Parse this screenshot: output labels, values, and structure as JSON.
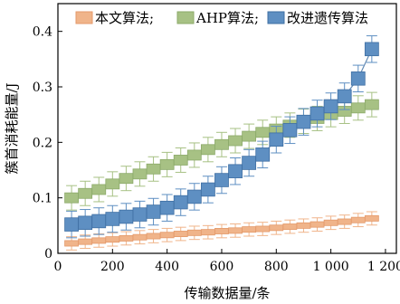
{
  "chart_data": {
    "type": "line",
    "xlabel": "传输数据量/条",
    "ylabel": "簇首消耗能量/J",
    "xlim": [
      0,
      1240
    ],
    "ylim": [
      0,
      0.45
    ],
    "xticks": [
      0,
      200,
      400,
      600,
      800,
      1000,
      1200
    ],
    "xtick_labels": [
      "0",
      "200",
      "400",
      "600",
      "800",
      "1 000",
      "1 200"
    ],
    "yticks": [
      0,
      0.1,
      0.2,
      0.3,
      0.4
    ],
    "ytick_labels": [
      "0",
      "0.1",
      "0.2",
      "0.3",
      "0.4"
    ],
    "grid": false,
    "legend_position": "top",
    "x": [
      50,
      100,
      150,
      200,
      250,
      300,
      350,
      400,
      450,
      500,
      550,
      600,
      650,
      700,
      750,
      800,
      850,
      900,
      950,
      1000,
      1050,
      1100,
      1150
    ],
    "series": [
      {
        "name": "本文算法;",
        "color": "#f0b48a",
        "edge_color": "#e49a6b",
        "values": [
          0.018,
          0.021,
          0.023,
          0.025,
          0.027,
          0.029,
          0.031,
          0.033,
          0.035,
          0.037,
          0.038,
          0.04,
          0.041,
          0.043,
          0.044,
          0.046,
          0.048,
          0.05,
          0.052,
          0.055,
          0.057,
          0.06,
          0.063
        ],
        "box_halfheight": 0.005,
        "error": 0.012
      },
      {
        "name": "AHP算法;",
        "color": "#a7c184",
        "edge_color": "#8caa6a",
        "values": [
          0.1,
          0.108,
          0.115,
          0.125,
          0.135,
          0.143,
          0.152,
          0.16,
          0.168,
          0.177,
          0.187,
          0.196,
          0.203,
          0.211,
          0.218,
          0.224,
          0.231,
          0.238,
          0.243,
          0.25,
          0.256,
          0.262,
          0.268
        ],
        "box_halfheight": 0.009,
        "error": 0.022
      },
      {
        "name": "改进遗传算法",
        "color": "#5e8fc2",
        "edge_color": "#3f6fa3",
        "values": [
          0.052,
          0.055,
          0.058,
          0.062,
          0.066,
          0.07,
          0.075,
          0.082,
          0.092,
          0.102,
          0.115,
          0.132,
          0.148,
          0.163,
          0.178,
          0.205,
          0.222,
          0.237,
          0.252,
          0.265,
          0.283,
          0.315,
          0.368
        ],
        "box_halfheight": 0.012,
        "error": 0.024
      }
    ]
  }
}
